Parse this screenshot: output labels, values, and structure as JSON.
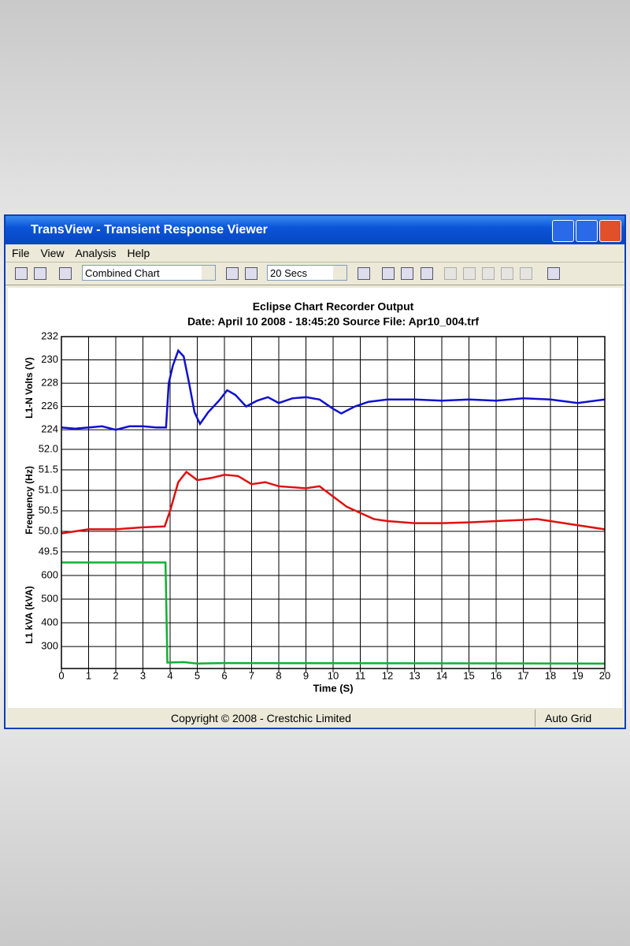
{
  "window": {
    "title": "TransView - Transient Response Viewer",
    "menu": [
      "File",
      "View",
      "Analysis",
      "Help"
    ],
    "toolbar": {
      "chart_mode": "Combined Chart",
      "time_span": "20 Secs"
    },
    "status": {
      "copyright": "Copyright © 2008 - Crestchic Limited",
      "grid_mode": "Auto Grid"
    }
  },
  "chart_data": [
    {
      "type": "line",
      "title": "Eclipse Chart Recorder Output",
      "subtitle": "Date:  April 10 2008  -  18:45:20    Source File:  Apr10_004.trf",
      "y_label": "L1-N Volts  (V)",
      "xlim": [
        0,
        20
      ],
      "ylim": [
        223.2,
        232
      ],
      "yticks": [
        224,
        226,
        228,
        230,
        232
      ],
      "grid": true,
      "x": [
        0,
        0.5,
        1,
        1.5,
        2,
        2.5,
        3,
        3.5,
        3.85,
        3.95,
        4.1,
        4.3,
        4.5,
        4.7,
        4.9,
        5.1,
        5.4,
        5.8,
        6.1,
        6.4,
        6.8,
        7.2,
        7.6,
        8,
        8.5,
        9,
        9.5,
        10,
        10.3,
        10.8,
        11.3,
        12,
        13,
        14,
        15,
        16,
        17,
        18,
        19,
        20
      ],
      "series": [
        {
          "color": "#1010d0",
          "values": [
            224.2,
            224.1,
            224.2,
            224.3,
            224.0,
            224.3,
            224.3,
            224.2,
            224.2,
            228,
            229.5,
            230.8,
            230.3,
            228,
            225.5,
            224.5,
            225.5,
            226.5,
            227.4,
            227,
            226,
            226.5,
            226.8,
            226.3,
            226.7,
            226.8,
            226.6,
            225.8,
            225.4,
            226,
            226.4,
            226.6,
            226.6,
            226.5,
            226.6,
            226.5,
            226.7,
            226.6,
            226.3,
            226.6
          ]
        }
      ]
    },
    {
      "type": "line",
      "y_label": "Frequency  (Hz)",
      "xlim": [
        0,
        20
      ],
      "ylim": [
        49.27,
        52.25
      ],
      "yticks": [
        {
          "value": 52,
          "label": "52.0"
        },
        51.5,
        {
          "value": 51,
          "label": "51.0"
        },
        50.5,
        {
          "value": 50,
          "label": "50.0"
        },
        49.5
      ],
      "grid": true,
      "x": [
        0,
        1,
        2,
        3,
        3.8,
        4,
        4.3,
        4.6,
        5,
        5.5,
        6,
        6.5,
        7,
        7.5,
        8,
        9,
        9.5,
        10,
        10.5,
        11,
        11.5,
        12,
        13,
        14,
        15,
        16,
        17,
        17.5,
        18,
        19,
        20
      ],
      "series": [
        {
          "color": "#e01010",
          "values": [
            49.95,
            50.05,
            50.05,
            50.1,
            50.12,
            50.5,
            51.2,
            51.45,
            51.25,
            51.3,
            51.38,
            51.35,
            51.15,
            51.2,
            51.1,
            51.05,
            51.1,
            50.85,
            50.6,
            50.45,
            50.3,
            50.25,
            50.2,
            50.2,
            50.22,
            50.25,
            50.28,
            50.3,
            50.25,
            50.15,
            50.05
          ]
        }
      ]
    },
    {
      "type": "line",
      "y_label": "L1 kVA  (kVA)",
      "x_label": "Time (S)",
      "xlim": [
        0,
        20
      ],
      "ylim": [
        207,
        660
      ],
      "yticks": [
        300,
        400,
        500,
        600
      ],
      "xticks": [
        0,
        1,
        2,
        3,
        4,
        5,
        6,
        7,
        8,
        9,
        10,
        11,
        12,
        13,
        14,
        15,
        16,
        17,
        18,
        19,
        20
      ],
      "grid": true,
      "x": [
        0,
        3.83,
        3.86,
        3.9,
        4.5,
        5,
        6,
        20
      ],
      "series": [
        {
          "color": "#10b030",
          "values": [
            655,
            655,
            480,
            232,
            234,
            228,
            230,
            228
          ]
        }
      ]
    }
  ]
}
